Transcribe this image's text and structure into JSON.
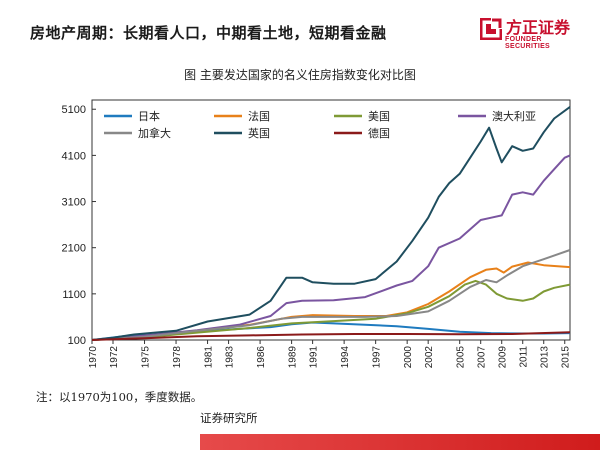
{
  "header": {
    "title": "房地产周期：长期看人口，中期看土地，短期看金融"
  },
  "logo": {
    "cn": "方正证券",
    "en": "FOUNDER SECURITIES",
    "color": "#c8102e"
  },
  "note": "注：以1970为100，季度数据。",
  "source": "证券研究所",
  "chart_data": {
    "type": "line",
    "title": "图    主要发达国家的名义住房指数变化对比图",
    "xlabel": "",
    "ylabel": "",
    "ylim": [
      100,
      5300
    ],
    "yticks": [
      100,
      1100,
      2100,
      3100,
      4100,
      5100
    ],
    "xlim": [
      1970,
      2015.5
    ],
    "xticks": [
      1970,
      1972,
      1975,
      1978,
      1981,
      1983,
      1986,
      1989,
      1991,
      1994,
      1997,
      2000,
      2002,
      2005,
      2007,
      2009,
      2011,
      2013,
      2015
    ],
    "grid": false,
    "legend": "top",
    "series": [
      {
        "name": "日本",
        "color": "#1f7bbf",
        "x": [
          1970,
          1973,
          1975,
          1978,
          1981,
          1984,
          1987,
          1989,
          1991,
          1993,
          1996,
          1999,
          2002,
          2005,
          2008,
          2011,
          2013,
          2015.5
        ],
        "y": [
          100,
          180,
          200,
          240,
          300,
          340,
          380,
          440,
          480,
          460,
          430,
          400,
          340,
          280,
          250,
          240,
          240,
          250
        ]
      },
      {
        "name": "法国",
        "color": "#e8811a",
        "x": [
          1970,
          1975,
          1980,
          1985,
          1989,
          1991,
          1995,
          1998,
          2000,
          2002,
          2004,
          2006,
          2007.5,
          2008.5,
          2009.2,
          2010,
          2011.5,
          2013,
          2015.5
        ],
        "y": [
          100,
          170,
          300,
          430,
          600,
          640,
          620,
          620,
          700,
          880,
          1150,
          1460,
          1620,
          1650,
          1560,
          1690,
          1780,
          1720,
          1680
        ]
      },
      {
        "name": "美国",
        "color": "#7f9a35",
        "x": [
          1970,
          1975,
          1980,
          1985,
          1989,
          1993,
          1997,
          2000,
          2002,
          2004,
          2005.5,
          2006.5,
          2007.5,
          2008.5,
          2009.5,
          2011,
          2012,
          2013,
          2014,
          2015.5
        ],
        "y": [
          100,
          160,
          260,
          360,
          460,
          510,
          560,
          680,
          820,
          1050,
          1300,
          1380,
          1300,
          1100,
          1000,
          950,
          1000,
          1150,
          1230,
          1300
        ]
      },
      {
        "name": "澳大利亚",
        "color": "#7a55a0",
        "x": [
          1970,
          1973,
          1976,
          1980,
          1984,
          1987,
          1988.5,
          1990,
          1993,
          1996,
          1999,
          2000.5,
          2002,
          2003,
          2005,
          2007,
          2008,
          2009,
          2010,
          2011,
          2012,
          2013,
          2014,
          2015,
          2015.5
        ],
        "y": [
          100,
          150,
          220,
          310,
          430,
          620,
          900,
          950,
          960,
          1030,
          1280,
          1380,
          1700,
          2100,
          2300,
          2700,
          2750,
          2800,
          3250,
          3300,
          3250,
          3550,
          3800,
          4050,
          4100
        ]
      },
      {
        "name": "加拿大",
        "color": "#888888",
        "x": [
          1970,
          1975,
          1980,
          1985,
          1988,
          1990,
          1993,
          1996,
          1999,
          2002,
          2004,
          2006,
          2007.5,
          2008.5,
          2009.5,
          2011,
          2013,
          2015.5
        ],
        "y": [
          100,
          170,
          300,
          420,
          560,
          600,
          600,
          600,
          620,
          720,
          950,
          1250,
          1400,
          1350,
          1500,
          1700,
          1850,
          2050
        ]
      },
      {
        "name": "英国",
        "color": "#1f4e5f",
        "x": [
          1970,
          1972,
          1974,
          1978,
          1981,
          1985,
          1987,
          1988.5,
          1990,
          1991,
          1993,
          1995,
          1997,
          1999,
          2000.5,
          2002,
          2003,
          2004,
          2005,
          2006,
          2007,
          2007.8,
          2008.5,
          2009,
          2010,
          2011,
          2012,
          2013,
          2014,
          2015.5
        ],
        "y": [
          100,
          150,
          220,
          300,
          500,
          650,
          950,
          1450,
          1450,
          1350,
          1320,
          1320,
          1420,
          1800,
          2250,
          2750,
          3200,
          3500,
          3700,
          4050,
          4400,
          4700,
          4250,
          3950,
          4300,
          4200,
          4250,
          4600,
          4900,
          5150
        ]
      },
      {
        "name": "德国",
        "color": "#8b1a1a",
        "x": [
          1970,
          1975,
          1980,
          1985,
          1990,
          1995,
          2000,
          2005,
          2010,
          2015.5
        ],
        "y": [
          100,
          140,
          180,
          200,
          220,
          230,
          230,
          225,
          230,
          270
        ]
      }
    ]
  }
}
